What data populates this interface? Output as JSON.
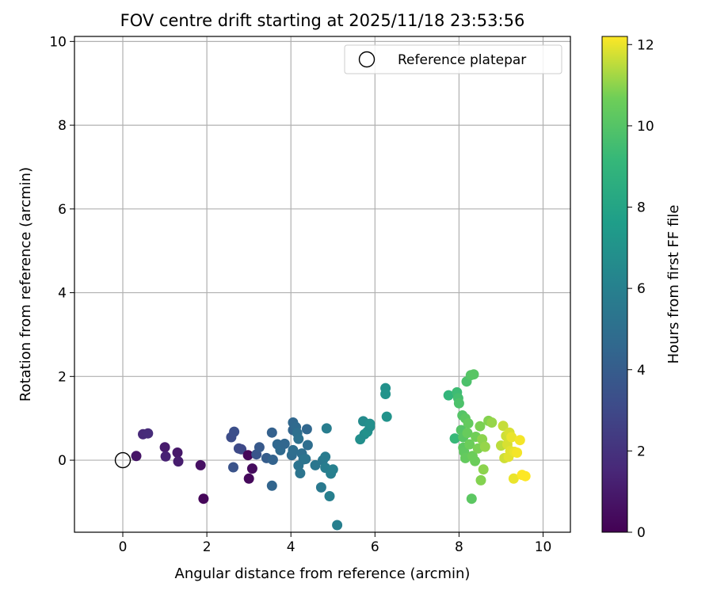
{
  "chart_data": {
    "type": "scatter",
    "title": "FOV centre drift starting at 2025/11/18 23:53:56",
    "xlabel": "Angular distance from reference (arcmin)",
    "ylabel": "Rotation from reference (arcmin)",
    "xlim": [
      -1.15,
      10.65
    ],
    "ylim": [
      -1.72,
      10.12
    ],
    "xticks": [
      0,
      2,
      4,
      6,
      8,
      10
    ],
    "yticks": [
      0,
      2,
      4,
      6,
      8,
      10
    ],
    "grid": true,
    "colormap": "viridis",
    "colorbar": {
      "label": "Hours from first FF file",
      "range": [
        0,
        12.2
      ],
      "ticks": [
        0,
        2,
        4,
        6,
        8,
        10,
        12
      ]
    },
    "legend": {
      "placement": "top-right",
      "entries": [
        {
          "label": "Reference platepar",
          "marker": "open-circle"
        }
      ]
    },
    "reference_point": {
      "x": 0,
      "y": 0
    },
    "series": [
      {
        "name": "FOV centre drift",
        "points": [
          {
            "x": 0.32,
            "y": 0.1,
            "c": 0.8
          },
          {
            "x": 0.48,
            "y": 0.62,
            "c": 1.6
          },
          {
            "x": 0.6,
            "y": 0.64,
            "c": 1.7
          },
          {
            "x": 1.0,
            "y": 0.31,
            "c": 1.0
          },
          {
            "x": 1.02,
            "y": 0.09,
            "c": 1.3
          },
          {
            "x": 1.3,
            "y": 0.18,
            "c": 0.9
          },
          {
            "x": 1.32,
            "y": -0.03,
            "c": 1.1
          },
          {
            "x": 1.85,
            "y": -0.12,
            "c": 0.6
          },
          {
            "x": 1.92,
            "y": -0.92,
            "c": 0.2
          },
          {
            "x": 2.58,
            "y": 0.55,
            "c": 3.2
          },
          {
            "x": 2.65,
            "y": 0.68,
            "c": 3.3
          },
          {
            "x": 2.63,
            "y": -0.17,
            "c": 3.5
          },
          {
            "x": 2.76,
            "y": 0.28,
            "c": 3.1
          },
          {
            "x": 2.82,
            "y": 0.26,
            "c": 3.0
          },
          {
            "x": 2.98,
            "y": 0.12,
            "c": 0.2
          },
          {
            "x": 3.0,
            "y": -0.44,
            "c": 0.3
          },
          {
            "x": 3.08,
            "y": -0.2,
            "c": 0.4
          },
          {
            "x": 3.18,
            "y": 0.14,
            "c": 3.6
          },
          {
            "x": 3.25,
            "y": 0.31,
            "c": 3.8
          },
          {
            "x": 3.42,
            "y": 0.05,
            "c": 4.0
          },
          {
            "x": 3.55,
            "y": 0.66,
            "c": 4.2
          },
          {
            "x": 3.57,
            "y": 0.01,
            "c": 4.3
          },
          {
            "x": 3.55,
            "y": -0.61,
            "c": 4.4
          },
          {
            "x": 3.68,
            "y": 0.38,
            "c": 4.6
          },
          {
            "x": 3.75,
            "y": 0.24,
            "c": 4.7
          },
          {
            "x": 3.85,
            "y": 0.39,
            "c": 4.5
          },
          {
            "x": 4.02,
            "y": 0.12,
            "c": 4.8
          },
          {
            "x": 4.05,
            "y": 0.72,
            "c": 4.4
          },
          {
            "x": 4.05,
            "y": 0.9,
            "c": 4.6
          },
          {
            "x": 4.05,
            "y": 0.24,
            "c": 4.9
          },
          {
            "x": 4.12,
            "y": 0.79,
            "c": 4.7
          },
          {
            "x": 4.15,
            "y": 0.65,
            "c": 5.0
          },
          {
            "x": 4.18,
            "y": 0.51,
            "c": 5.1
          },
          {
            "x": 4.18,
            "y": -0.13,
            "c": 5.2
          },
          {
            "x": 4.22,
            "y": -0.31,
            "c": 5.3
          },
          {
            "x": 4.26,
            "y": 0.16,
            "c": 5.0
          },
          {
            "x": 4.3,
            "y": 0.02,
            "c": 5.2
          },
          {
            "x": 4.35,
            "y": 0.03,
            "c": 5.3
          },
          {
            "x": 4.38,
            "y": 0.74,
            "c": 4.6
          },
          {
            "x": 4.4,
            "y": 0.36,
            "c": 4.9
          },
          {
            "x": 4.58,
            "y": -0.12,
            "c": 5.4
          },
          {
            "x": 4.72,
            "y": -0.65,
            "c": 5.6
          },
          {
            "x": 4.76,
            "y": -0.0,
            "c": 5.5
          },
          {
            "x": 4.82,
            "y": 0.08,
            "c": 5.7
          },
          {
            "x": 4.82,
            "y": -0.18,
            "c": 5.8
          },
          {
            "x": 4.85,
            "y": 0.76,
            "c": 5.8
          },
          {
            "x": 4.92,
            "y": -0.86,
            "c": 5.9
          },
          {
            "x": 4.95,
            "y": -0.32,
            "c": 5.9
          },
          {
            "x": 5.0,
            "y": -0.22,
            "c": 6.0
          },
          {
            "x": 5.1,
            "y": -1.55,
            "c": 5.9
          },
          {
            "x": 5.65,
            "y": 0.5,
            "c": 6.8
          },
          {
            "x": 5.72,
            "y": 0.93,
            "c": 6.6
          },
          {
            "x": 5.75,
            "y": 0.62,
            "c": 6.7
          },
          {
            "x": 5.82,
            "y": 0.68,
            "c": 6.9
          },
          {
            "x": 5.88,
            "y": 0.8,
            "c": 6.7
          },
          {
            "x": 5.88,
            "y": 0.87,
            "c": 6.8
          },
          {
            "x": 6.25,
            "y": 1.72,
            "c": 6.9
          },
          {
            "x": 6.25,
            "y": 1.58,
            "c": 7.0
          },
          {
            "x": 6.28,
            "y": 1.04,
            "c": 7.0
          },
          {
            "x": 7.75,
            "y": 1.55,
            "c": 9.0
          },
          {
            "x": 7.9,
            "y": 0.52,
            "c": 9.2
          },
          {
            "x": 7.95,
            "y": 1.62,
            "c": 9.4
          },
          {
            "x": 7.98,
            "y": 1.48,
            "c": 9.6
          },
          {
            "x": 8.0,
            "y": 1.36,
            "c": 9.8
          },
          {
            "x": 8.05,
            "y": 0.72,
            "c": 10.0
          },
          {
            "x": 8.08,
            "y": 1.07,
            "c": 10.0
          },
          {
            "x": 8.1,
            "y": 0.55,
            "c": 10.1
          },
          {
            "x": 8.1,
            "y": 0.3,
            "c": 10.2
          },
          {
            "x": 8.12,
            "y": 0.2,
            "c": 10.3
          },
          {
            "x": 8.15,
            "y": 0.05,
            "c": 10.4
          },
          {
            "x": 8.15,
            "y": 1.0,
            "c": 10.2
          },
          {
            "x": 8.18,
            "y": 1.88,
            "c": 9.8
          },
          {
            "x": 8.2,
            "y": 0.65,
            "c": 10.5
          },
          {
            "x": 8.22,
            "y": 0.88,
            "c": 10.4
          },
          {
            "x": 8.25,
            "y": 0.38,
            "c": 10.6
          },
          {
            "x": 8.28,
            "y": 2.03,
            "c": 10.0
          },
          {
            "x": 8.3,
            "y": -0.92,
            "c": 10.2
          },
          {
            "x": 8.32,
            "y": 0.1,
            "c": 10.6
          },
          {
            "x": 8.35,
            "y": 2.05,
            "c": 10.1
          },
          {
            "x": 8.38,
            "y": -0.02,
            "c": 10.6
          },
          {
            "x": 8.4,
            "y": 0.56,
            "c": 10.7
          },
          {
            "x": 8.45,
            "y": 0.28,
            "c": 10.8
          },
          {
            "x": 8.5,
            "y": 0.81,
            "c": 10.8
          },
          {
            "x": 8.52,
            "y": -0.48,
            "c": 10.9
          },
          {
            "x": 8.55,
            "y": 0.5,
            "c": 11.0
          },
          {
            "x": 8.58,
            "y": -0.22,
            "c": 11.0
          },
          {
            "x": 8.62,
            "y": 0.32,
            "c": 11.1
          },
          {
            "x": 8.7,
            "y": 0.94,
            "c": 10.9
          },
          {
            "x": 8.78,
            "y": 0.9,
            "c": 11.1
          },
          {
            "x": 9.0,
            "y": 0.35,
            "c": 11.5
          },
          {
            "x": 9.05,
            "y": 0.82,
            "c": 11.6
          },
          {
            "x": 9.08,
            "y": 0.05,
            "c": 11.7
          },
          {
            "x": 9.12,
            "y": 0.58,
            "c": 11.7
          },
          {
            "x": 9.15,
            "y": 0.38,
            "c": 11.8
          },
          {
            "x": 9.18,
            "y": 0.08,
            "c": 11.9
          },
          {
            "x": 9.2,
            "y": 0.66,
            "c": 11.8
          },
          {
            "x": 9.22,
            "y": 0.22,
            "c": 11.9
          },
          {
            "x": 9.25,
            "y": 0.55,
            "c": 12.0
          },
          {
            "x": 9.3,
            "y": -0.44,
            "c": 12.0
          },
          {
            "x": 9.32,
            "y": 0.2,
            "c": 12.0
          },
          {
            "x": 9.38,
            "y": 0.18,
            "c": 12.1
          },
          {
            "x": 9.45,
            "y": 0.48,
            "c": 12.1
          },
          {
            "x": 9.5,
            "y": -0.35,
            "c": 12.2
          },
          {
            "x": 9.58,
            "y": -0.38,
            "c": 12.2
          }
        ]
      }
    ]
  }
}
